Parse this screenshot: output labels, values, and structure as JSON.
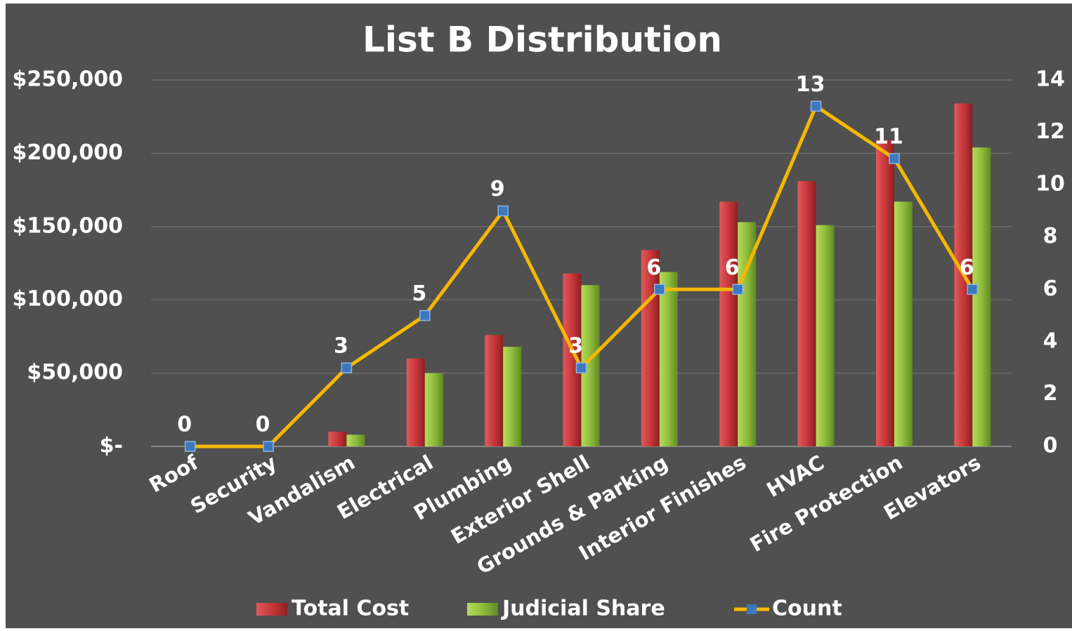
{
  "chart_data": {
    "type": "bar-line",
    "title": "List B Distribution",
    "categories": [
      "Roof",
      "Security",
      "Vandalism",
      "Electrical",
      "Plumbing",
      "Exterior Shell",
      "Grounds & Parking",
      "Interior Finishes",
      "HVAC",
      "Fire Protection",
      "Elevators"
    ],
    "series": [
      {
        "name": "Total Cost",
        "color": "#c8383a",
        "type": "bar",
        "values": [
          0,
          0,
          10000,
          60000,
          76000,
          118000,
          134000,
          167000,
          181000,
          209000,
          234000
        ]
      },
      {
        "name": "Judicial Share",
        "color": "#8fbc3c",
        "type": "bar",
        "values": [
          0,
          0,
          8000,
          50000,
          68000,
          110000,
          119000,
          153000,
          151000,
          167000,
          204000
        ]
      },
      {
        "name": "Count",
        "color": "#f5b800",
        "type": "line",
        "axis": "y2",
        "marker_color": "#3b78c0",
        "values": [
          0,
          0,
          3,
          5,
          9,
          3,
          6,
          6,
          13,
          11,
          6
        ]
      }
    ],
    "ylim": [
      0,
      250000
    ],
    "yticks": [
      {
        "value": 0,
        "label": "$-"
      },
      {
        "value": 50000,
        "label": "$50,000"
      },
      {
        "value": 100000,
        "label": "$100,000"
      },
      {
        "value": 150000,
        "label": "$150,000"
      },
      {
        "value": 200000,
        "label": "$200,000"
      },
      {
        "value": 250000,
        "label": "$250,000"
      }
    ],
    "y2lim": [
      0,
      14
    ],
    "y2ticks": [
      0,
      2,
      4,
      6,
      8,
      10,
      12,
      14
    ],
    "grid": true,
    "legend": "bottom"
  }
}
